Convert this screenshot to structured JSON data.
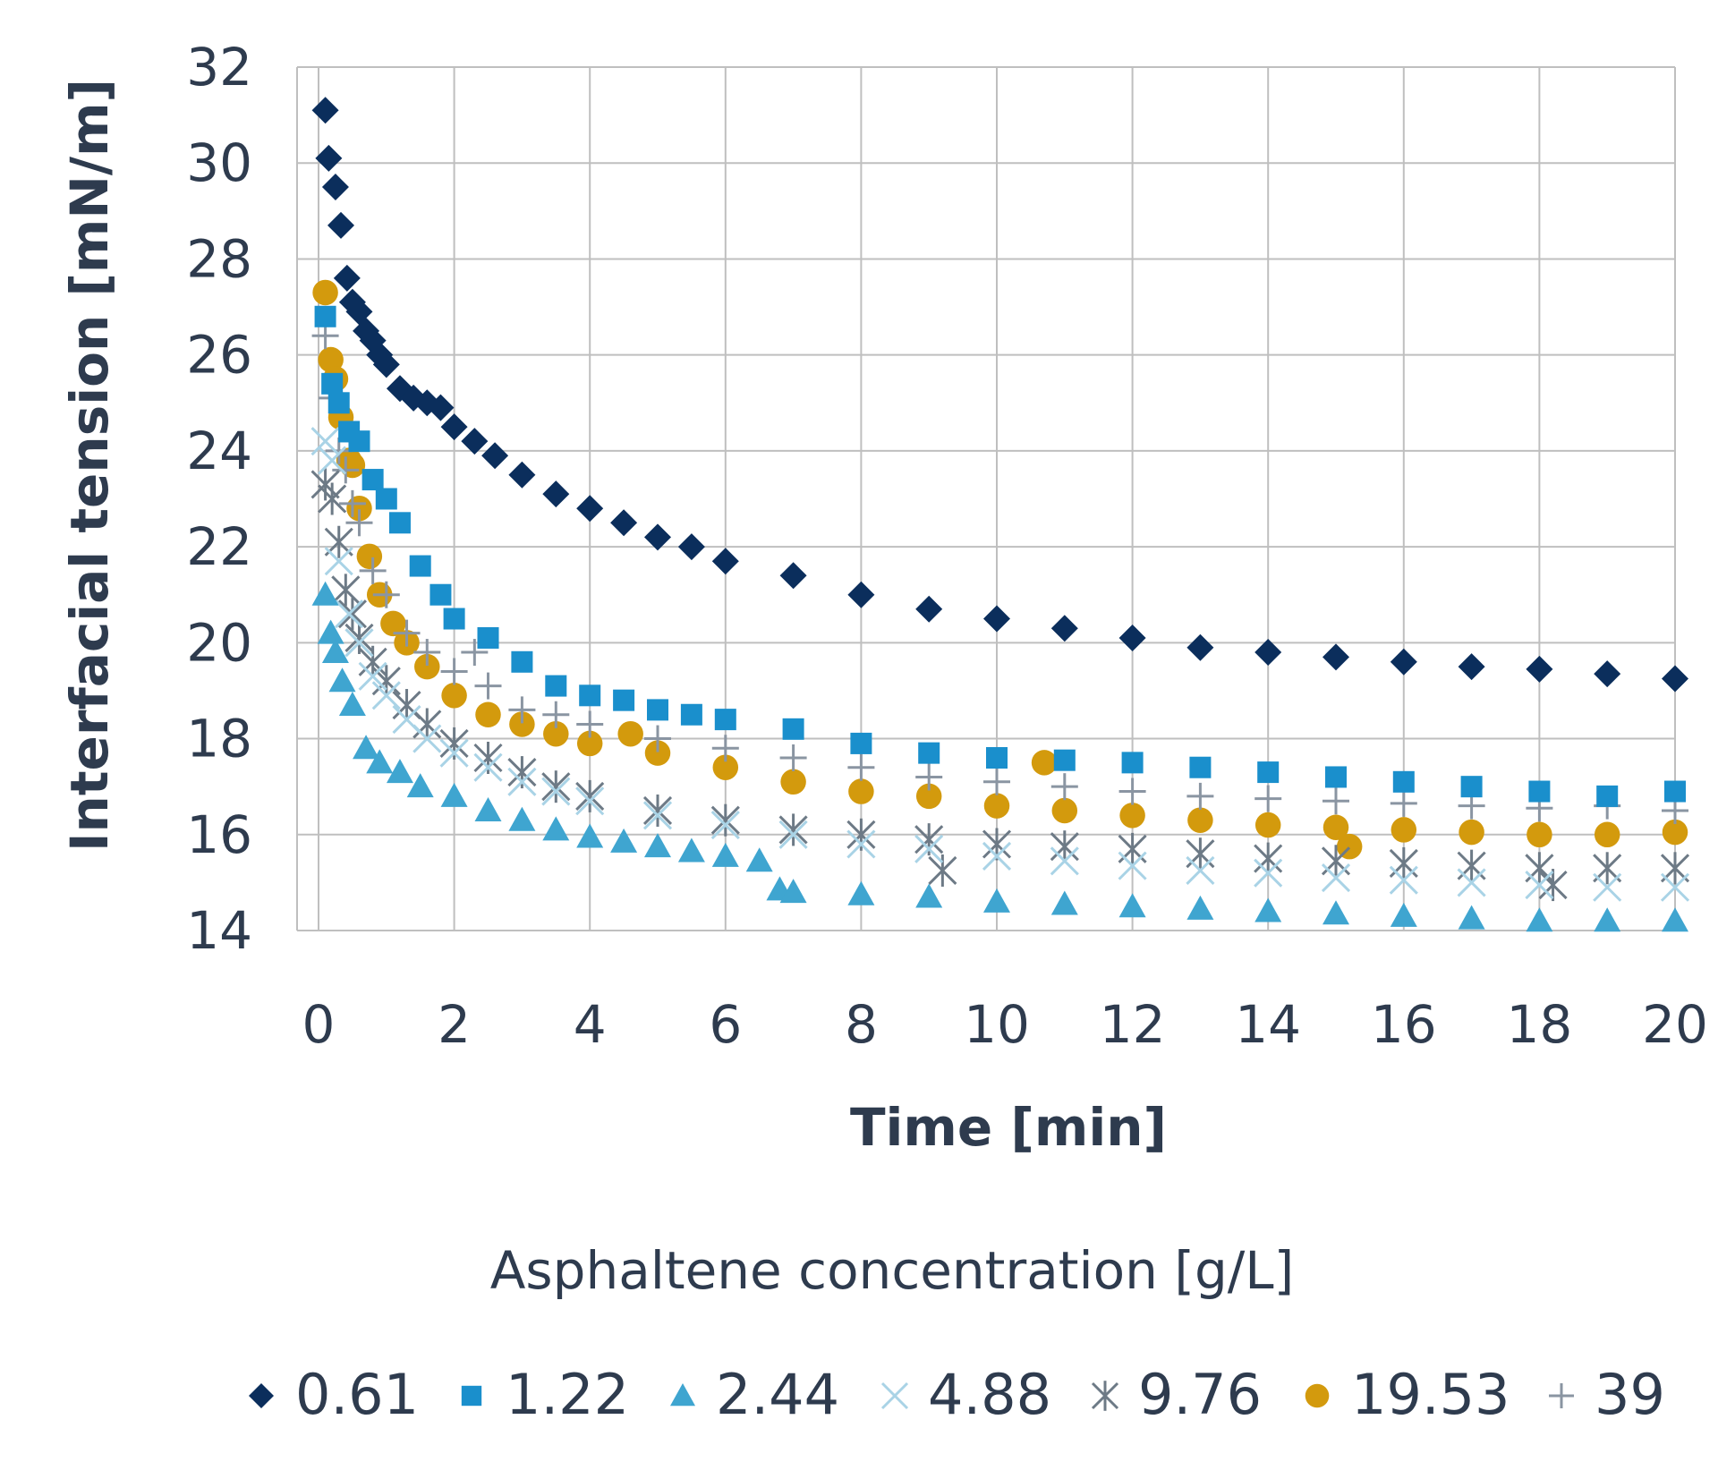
{
  "chart_data": {
    "type": "scatter",
    "xlabel": "Time [min]",
    "ylabel": "Interfacial tension [mN/m]",
    "xlim": [
      0,
      20
    ],
    "ylim": [
      14,
      32
    ],
    "xticks": [
      "0",
      "2",
      "4",
      "6",
      "8",
      "10",
      "12",
      "14",
      "16",
      "18",
      "20"
    ],
    "yticks": [
      "14",
      "16",
      "18",
      "20",
      "22",
      "24",
      "26",
      "28",
      "30",
      "32"
    ],
    "grid": true,
    "legend_title": "Asphaltene concentration [g/L]",
    "legend_position": "bottom",
    "series": [
      {
        "name": "0.61",
        "marker": "diamond",
        "color": "#0b2e5c",
        "x": [
          0.1,
          0.15,
          0.25,
          0.33,
          0.42,
          0.5,
          0.6,
          0.7,
          0.8,
          0.9,
          1.0,
          1.2,
          1.4,
          1.6,
          1.8,
          2.0,
          2.3,
          2.6,
          3.0,
          3.5,
          4.0,
          4.5,
          5.0,
          5.5,
          6.0,
          7.0,
          8.0,
          9.0,
          10.0,
          11.0,
          12.0,
          13.0,
          14.0,
          15.0,
          16.0,
          17.0,
          18.0,
          19.0,
          20.0
        ],
        "y": [
          31.1,
          30.1,
          29.5,
          28.7,
          27.6,
          27.1,
          26.9,
          26.5,
          26.3,
          26.0,
          25.8,
          25.3,
          25.1,
          25.0,
          24.9,
          24.5,
          24.2,
          23.9,
          23.5,
          23.1,
          22.8,
          22.5,
          22.2,
          22.0,
          21.7,
          21.4,
          21.0,
          20.7,
          20.5,
          20.3,
          20.1,
          19.9,
          19.8,
          19.7,
          19.6,
          19.5,
          19.45,
          19.35,
          19.25
        ]
      },
      {
        "name": "1.22",
        "marker": "square",
        "color": "#1a8fcc",
        "x": [
          0.1,
          0.2,
          0.3,
          0.45,
          0.6,
          0.8,
          1.0,
          1.2,
          1.5,
          1.8,
          2.0,
          2.5,
          3.0,
          3.5,
          4.0,
          4.5,
          5.0,
          5.5,
          6.0,
          7.0,
          8.0,
          9.0,
          10.0,
          11.0,
          12.0,
          13.0,
          14.0,
          15.0,
          16.0,
          17.0,
          18.0,
          19.0,
          20.0
        ],
        "y": [
          26.8,
          25.4,
          25.0,
          24.4,
          24.2,
          23.4,
          23.0,
          22.5,
          21.6,
          21.0,
          20.5,
          20.1,
          19.6,
          19.1,
          18.9,
          18.8,
          18.6,
          18.5,
          18.4,
          18.2,
          17.9,
          17.7,
          17.6,
          17.55,
          17.5,
          17.4,
          17.3,
          17.2,
          17.1,
          17.0,
          16.9,
          16.8,
          16.9
        ]
      },
      {
        "name": "2.44",
        "marker": "triangle",
        "color": "#3fa5d0",
        "x": [
          0.1,
          0.18,
          0.25,
          0.35,
          0.5,
          0.7,
          0.9,
          1.2,
          1.5,
          2.0,
          2.5,
          3.0,
          3.5,
          4.0,
          4.5,
          5.0,
          5.5,
          6.0,
          6.5,
          6.8,
          7.0,
          8.0,
          9.0,
          10.0,
          11.0,
          12.0,
          13.0,
          14.0,
          15.0,
          16.0,
          17.0,
          18.0,
          19.0,
          20.0
        ],
        "y": [
          21.0,
          20.2,
          19.8,
          19.2,
          18.7,
          17.8,
          17.5,
          17.3,
          17.0,
          16.8,
          16.5,
          16.3,
          16.1,
          15.95,
          15.85,
          15.75,
          15.65,
          15.55,
          15.45,
          14.85,
          14.8,
          14.75,
          14.7,
          14.6,
          14.55,
          14.5,
          14.45,
          14.4,
          14.35,
          14.3,
          14.25,
          14.2,
          14.2,
          14.2
        ]
      },
      {
        "name": "4.88",
        "marker": "x",
        "color": "#a9d3e6",
        "x": [
          0.1,
          0.2,
          0.3,
          0.45,
          0.6,
          0.8,
          1.0,
          1.3,
          1.6,
          2.0,
          2.5,
          3.0,
          3.5,
          4.0,
          5.0,
          6.0,
          7.0,
          8.0,
          9.0,
          10.0,
          11.0,
          12.0,
          13.0,
          14.0,
          15.0,
          16.0,
          17.0,
          18.0,
          19.0,
          20.0
        ],
        "y": [
          24.2,
          23.8,
          21.7,
          20.6,
          20.0,
          19.3,
          18.9,
          18.4,
          18.0,
          17.7,
          17.4,
          17.1,
          16.9,
          16.7,
          16.4,
          16.2,
          16.0,
          15.8,
          15.7,
          15.55,
          15.45,
          15.35,
          15.25,
          15.2,
          15.1,
          15.05,
          15.0,
          14.95,
          14.9,
          14.9
        ]
      },
      {
        "name": "9.76",
        "marker": "star",
        "color": "#6d7a86",
        "x": [
          0.1,
          0.2,
          0.3,
          0.4,
          0.5,
          0.6,
          0.8,
          1.0,
          1.3,
          1.6,
          2.0,
          2.5,
          3.0,
          3.5,
          4.0,
          5.0,
          6.0,
          7.0,
          8.0,
          9.0,
          9.2,
          10.0,
          11.0,
          12.0,
          13.0,
          14.0,
          15.0,
          16.0,
          17.0,
          18.0,
          18.2,
          19.0,
          20.0
        ],
        "y": [
          23.3,
          23.0,
          22.1,
          21.1,
          20.6,
          20.1,
          19.6,
          19.2,
          18.7,
          18.3,
          17.9,
          17.6,
          17.3,
          17.0,
          16.8,
          16.5,
          16.3,
          16.1,
          16.0,
          15.9,
          15.25,
          15.8,
          15.75,
          15.7,
          15.6,
          15.5,
          15.45,
          15.4,
          15.35,
          15.3,
          14.95,
          15.3,
          15.3
        ]
      },
      {
        "name": "19.53",
        "marker": "circle",
        "color": "#d39a0d",
        "x": [
          0.1,
          0.18,
          0.25,
          0.33,
          0.45,
          0.5,
          0.6,
          0.75,
          0.9,
          1.1,
          1.3,
          1.6,
          2.0,
          2.5,
          3.0,
          3.5,
          4.0,
          4.6,
          5.0,
          6.0,
          7.0,
          8.0,
          9.0,
          10.0,
          10.7,
          11.0,
          12.0,
          13.0,
          14.0,
          15.0,
          15.2,
          16.0,
          17.0,
          18.0,
          19.0,
          20.0
        ],
        "y": [
          27.3,
          25.9,
          25.5,
          24.7,
          23.8,
          23.7,
          22.8,
          21.8,
          21.0,
          20.4,
          20.0,
          19.5,
          18.9,
          18.5,
          18.3,
          18.1,
          17.9,
          18.1,
          17.7,
          17.4,
          17.1,
          16.9,
          16.8,
          16.6,
          17.5,
          16.5,
          16.4,
          16.3,
          16.2,
          16.15,
          15.75,
          16.1,
          16.05,
          16.0,
          16.0,
          16.05
        ]
      },
      {
        "name": "39",
        "marker": "plus",
        "color": "#8a95a2",
        "x": [
          0.1,
          0.2,
          0.3,
          0.4,
          0.5,
          0.6,
          0.8,
          1.0,
          1.3,
          1.6,
          2.0,
          2.3,
          2.5,
          3.0,
          3.5,
          4.0,
          5.0,
          6.0,
          7.0,
          8.0,
          9.0,
          10.0,
          11.0,
          12.0,
          13.0,
          14.0,
          15.0,
          16.0,
          17.0,
          18.0,
          19.0,
          20.0
        ],
        "y": [
          26.4,
          25.1,
          24.0,
          23.6,
          22.9,
          22.5,
          21.5,
          21.0,
          20.2,
          19.8,
          19.4,
          19.8,
          19.1,
          18.6,
          18.5,
          18.3,
          18.0,
          17.8,
          17.6,
          17.4,
          17.2,
          17.1,
          17.0,
          16.9,
          16.8,
          16.75,
          16.7,
          16.65,
          16.6,
          16.55,
          16.6,
          16.5
        ]
      }
    ]
  }
}
